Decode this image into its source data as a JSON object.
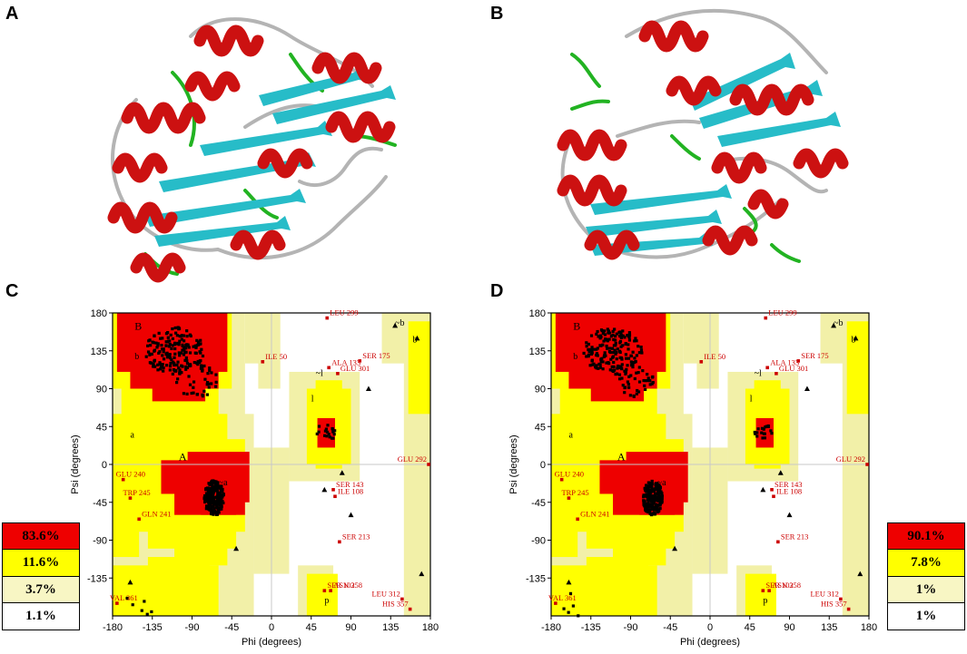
{
  "panels": [
    {
      "letter": "A"
    },
    {
      "letter": "B"
    },
    {
      "letter": "C",
      "legend": [
        "83.6%",
        "11.6%",
        "3.7%",
        "1.1%"
      ]
    },
    {
      "letter": "D",
      "legend": [
        "90.1%",
        "7.8%",
        "1%",
        "1%"
      ]
    }
  ],
  "colors": {
    "helix": "#cc1111",
    "sheet": "#27bcc8",
    "loop": "#b4b4b4",
    "turn": "#22b322",
    "core": "#ee0000",
    "allowed": "#ffff00",
    "generous": "#f2f0a8",
    "disallowed": "#ffffff"
  },
  "chart_data": [
    {
      "type": "scatter",
      "xlabel": "Phi (degrees)",
      "ylabel": "Psi (degrees)",
      "xlim": [
        -180,
        180
      ],
      "ylim": [
        -180,
        180
      ],
      "xticks": [
        "-180",
        "-135",
        "-90",
        "-45",
        "0",
        "45",
        "90",
        "135",
        "180"
      ],
      "yticks": [
        "180",
        "135",
        "90",
        "45",
        "0",
        "-45",
        "-90",
        "-135"
      ],
      "region_labels": [
        "B",
        "b",
        "A",
        "a",
        "~a",
        "l",
        "~l",
        "~b",
        "b",
        "p"
      ],
      "labeled_residues": [
        {
          "label": "LEU 299",
          "phi": 63,
          "psi": 174
        },
        {
          "label": "ILE 50",
          "phi": -10,
          "psi": 122
        },
        {
          "label": "ALA 133",
          "phi": 65,
          "psi": 115
        },
        {
          "label": "SER 175",
          "phi": 100,
          "psi": 123
        },
        {
          "label": "GLU 301",
          "phi": 75,
          "psi": 108
        },
        {
          "label": "GLU 292",
          "phi": 178,
          "psi": 0
        },
        {
          "label": "GLU 240",
          "phi": -168,
          "psi": -18
        },
        {
          "label": "TRP 245",
          "phi": -160,
          "psi": -40
        },
        {
          "label": "SER 143",
          "phi": 70,
          "psi": -30
        },
        {
          "label": "ILE 108",
          "phi": 72,
          "psi": -38
        },
        {
          "label": "GLN 241",
          "phi": -150,
          "psi": -65
        },
        {
          "label": "SER 213",
          "phi": 77,
          "psi": -92
        },
        {
          "label": "SER 102",
          "phi": 60,
          "psi": -150
        },
        {
          "label": "ASN 358",
          "phi": 67,
          "psi": -150
        },
        {
          "label": "LEU 312",
          "phi": 148,
          "psi": -160
        },
        {
          "label": "HIS 357",
          "phi": 157,
          "psi": -172
        },
        {
          "label": "VAL 361",
          "phi": -175,
          "psi": -165
        }
      ]
    },
    {
      "type": "scatter",
      "xlabel": "Phi (degrees)",
      "ylabel": "Psi (degrees)",
      "xlim": [
        -180,
        180
      ],
      "ylim": [
        -180,
        180
      ],
      "xticks": [
        "-180",
        "-135",
        "-90",
        "-45",
        "0",
        "45",
        "90",
        "135",
        "180"
      ],
      "yticks": [
        "180",
        "135",
        "90",
        "45",
        "0",
        "-45",
        "-90",
        "-135"
      ],
      "region_labels": [
        "B",
        "b",
        "A",
        "a",
        "~a",
        "l",
        "~l",
        "~b",
        "b",
        "p"
      ],
      "labeled_residues": [
        {
          "label": "LEU 299",
          "phi": 63,
          "psi": 174
        },
        {
          "label": "ILE 50",
          "phi": -10,
          "psi": 122
        },
        {
          "label": "ALA 133",
          "phi": 65,
          "psi": 115
        },
        {
          "label": "SER 175",
          "phi": 100,
          "psi": 123
        },
        {
          "label": "GLU 301",
          "phi": 75,
          "psi": 108
        },
        {
          "label": "GLU 292",
          "phi": 178,
          "psi": 0
        },
        {
          "label": "GLU 240",
          "phi": -168,
          "psi": -18
        },
        {
          "label": "TRP 245",
          "phi": -160,
          "psi": -40
        },
        {
          "label": "SER 143",
          "phi": 70,
          "psi": -30
        },
        {
          "label": "ILE 108",
          "phi": 72,
          "psi": -38
        },
        {
          "label": "GLN 241",
          "phi": -150,
          "psi": -65
        },
        {
          "label": "SER 213",
          "phi": 77,
          "psi": -92
        },
        {
          "label": "SER 102",
          "phi": 60,
          "psi": -150
        },
        {
          "label": "ASN 358",
          "phi": 67,
          "psi": -150
        },
        {
          "label": "LEU 312",
          "phi": 148,
          "psi": -160
        },
        {
          "label": "HIS 357",
          "phi": 157,
          "psi": -172
        },
        {
          "label": "VAL 361",
          "phi": -175,
          "psi": -165
        }
      ]
    }
  ]
}
